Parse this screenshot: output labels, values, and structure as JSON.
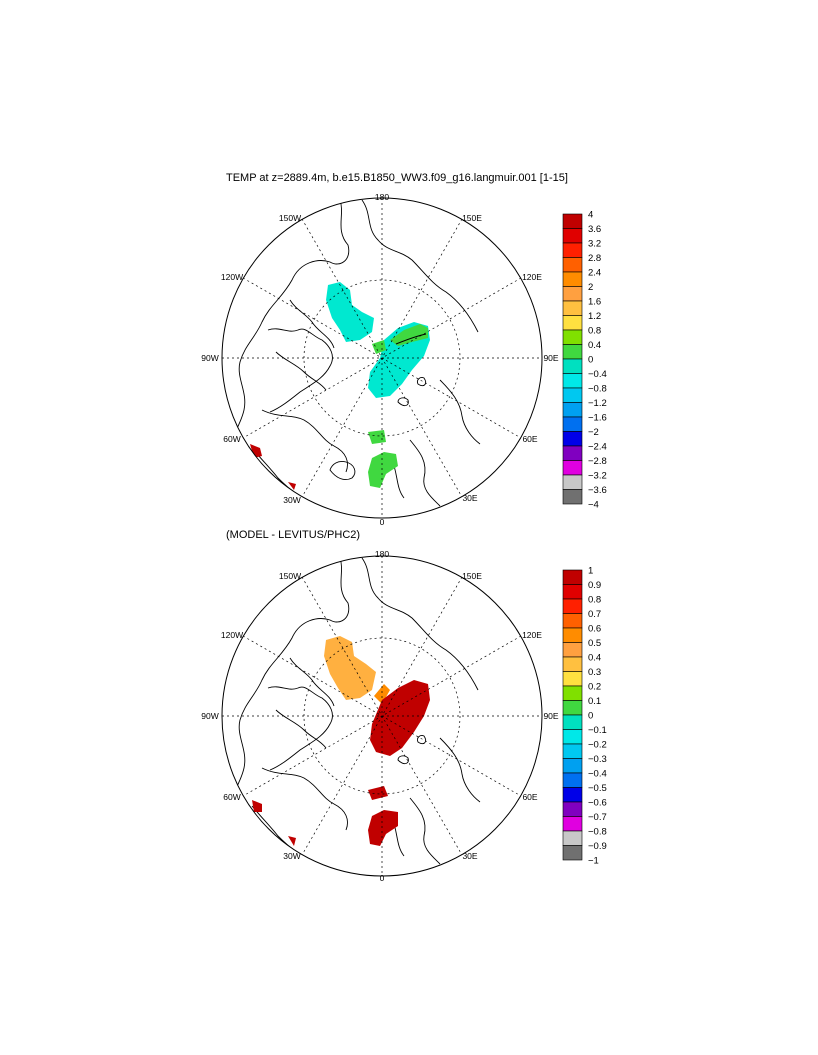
{
  "panels": [
    {
      "title": "TEMP at z=2889.4m, b.e15.B1850_WW3.f09_g16.langmuir.001 [1-15]",
      "lon_labels": [
        "180",
        "150E",
        "120E",
        "90E",
        "60E",
        "30E",
        "0",
        "30W",
        "60W",
        "90W",
        "120W",
        "150W"
      ],
      "colorbar": {
        "labels": [
          "4",
          "3.6",
          "3.2",
          "2.8",
          "2.4",
          "2",
          "1.6",
          "1.2",
          "0.8",
          "0.4",
          "0",
          "−0.4",
          "−0.8",
          "−1.2",
          "−1.6",
          "−2",
          "−2.4",
          "−2.8",
          "−3.2",
          "−3.6",
          "−4"
        ],
        "colors": [
          "#c00000",
          "#e00000",
          "#ff2000",
          "#ff6000",
          "#ff8c00",
          "#ffa040",
          "#ffc040",
          "#ffe040",
          "#80e000",
          "#40d840",
          "#00e0c0",
          "#00e8e8",
          "#00c8f0",
          "#00a0f0",
          "#0070f0",
          "#0000e8",
          "#8000c0",
          "#e000e0",
          "#c8c8c8",
          "#707070"
        ]
      }
    },
    {
      "title": "(MODEL - LEVITUS/PHC2)",
      "lon_labels": [
        "180",
        "150E",
        "120E",
        "90E",
        "60E",
        "30E",
        "0",
        "30W",
        "60W",
        "90W",
        "120W",
        "150W"
      ],
      "colorbar": {
        "labels": [
          "1",
          "0.9",
          "0.8",
          "0.7",
          "0.6",
          "0.5",
          "0.4",
          "0.3",
          "0.2",
          "0.1",
          "0",
          "−0.1",
          "−0.2",
          "−0.3",
          "−0.4",
          "−0.5",
          "−0.6",
          "−0.7",
          "−0.8",
          "−0.9",
          "−1"
        ],
        "colors": [
          "#c00000",
          "#e00000",
          "#ff2000",
          "#ff6000",
          "#ff8c00",
          "#ffa040",
          "#ffc040",
          "#ffe040",
          "#80e000",
          "#40d840",
          "#00e0c0",
          "#00e8e8",
          "#00c8f0",
          "#00a0f0",
          "#0070f0",
          "#0000e8",
          "#8000c0",
          "#e000e0",
          "#c8c8c8",
          "#707070"
        ]
      }
    }
  ]
}
